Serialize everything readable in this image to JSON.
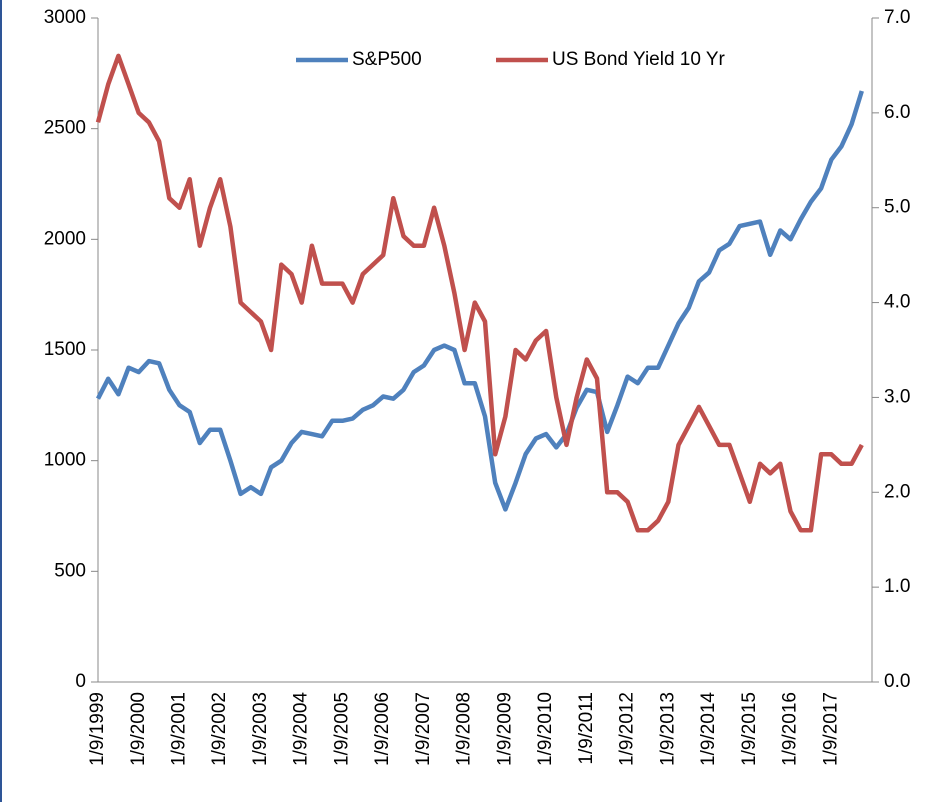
{
  "chart_data": {
    "type": "line",
    "categories": [
      "1/9/1999",
      null,
      null,
      null,
      "1/9/2000",
      null,
      null,
      null,
      "1/9/2001",
      null,
      null,
      null,
      "1/9/2002",
      null,
      null,
      null,
      "1/9/2003",
      null,
      null,
      null,
      "1/9/2004",
      null,
      null,
      null,
      "1/9/2005",
      null,
      null,
      null,
      "1/9/2006",
      null,
      null,
      null,
      "1/9/2007",
      null,
      null,
      null,
      "1/9/2008",
      null,
      null,
      null,
      "1/9/2009",
      null,
      null,
      null,
      "1/9/2010",
      null,
      null,
      null,
      "1/9/2011",
      null,
      null,
      null,
      "1/9/2012",
      null,
      null,
      null,
      "1/9/2013",
      null,
      null,
      null,
      "1/9/2014",
      null,
      null,
      null,
      "1/9/2015",
      null,
      null,
      null,
      "1/9/2016",
      null,
      null,
      null,
      "1/9/2017",
      null,
      null,
      null
    ],
    "series": [
      {
        "name": "S&P500",
        "color": "#4f81bd",
        "axis": "y",
        "values": [
          1280,
          1370,
          1300,
          1420,
          1400,
          1450,
          1440,
          1320,
          1250,
          1220,
          1080,
          1140,
          1140,
          1000,
          850,
          880,
          850,
          970,
          1000,
          1080,
          1130,
          1120,
          1110,
          1180,
          1180,
          1190,
          1230,
          1250,
          1290,
          1280,
          1320,
          1400,
          1430,
          1500,
          1520,
          1500,
          1350,
          1350,
          1200,
          900,
          780,
          900,
          1030,
          1100,
          1120,
          1060,
          1120,
          1240,
          1320,
          1310,
          1130,
          1250,
          1380,
          1350,
          1420,
          1420,
          1520,
          1620,
          1690,
          1810,
          1850,
          1950,
          1980,
          2060,
          2070,
          2080,
          1930,
          2040,
          2000,
          2090,
          2170,
          2230,
          2360,
          2420,
          2520,
          2670
        ]
      },
      {
        "name": "US Bond Yield 10 Yr",
        "color": "#c0504d",
        "axis": "y2",
        "values": [
          5.9,
          6.3,
          6.6,
          6.3,
          6.0,
          5.9,
          5.7,
          5.1,
          5.0,
          5.3,
          4.6,
          5.0,
          5.3,
          4.8,
          4.0,
          3.9,
          3.8,
          3.5,
          4.4,
          4.3,
          4.0,
          4.6,
          4.2,
          4.2,
          4.2,
          4.0,
          4.3,
          4.4,
          4.5,
          5.1,
          4.7,
          4.6,
          4.6,
          5.0,
          4.6,
          4.1,
          3.5,
          4.0,
          3.8,
          2.4,
          2.8,
          3.5,
          3.4,
          3.6,
          3.7,
          3.0,
          2.5,
          3.0,
          3.4,
          3.2,
          2.0,
          2.0,
          1.9,
          1.6,
          1.6,
          1.7,
          1.9,
          2.5,
          2.7,
          2.9,
          2.7,
          2.5,
          2.5,
          2.2,
          1.9,
          2.3,
          2.2,
          2.3,
          1.8,
          1.6,
          1.6,
          2.4,
          2.4,
          2.3,
          2.3,
          2.5
        ]
      }
    ],
    "ylim": [
      0,
      3000
    ],
    "yticks": [
      0,
      500,
      1000,
      1500,
      2000,
      2500,
      3000
    ],
    "y2lim": [
      0,
      7
    ],
    "y2ticks": [
      {
        "value": 0,
        "label": "0.0"
      },
      {
        "value": 1,
        "label": "1.0"
      },
      {
        "value": 2,
        "label": "2.0"
      },
      {
        "value": 3,
        "label": "3.0"
      },
      {
        "value": 4,
        "label": "4.0"
      },
      {
        "value": 5,
        "label": "5.0"
      },
      {
        "value": 6,
        "label": "6.0"
      },
      {
        "value": 7,
        "label": "7.0"
      }
    ],
    "legend": "top",
    "grid": false
  }
}
